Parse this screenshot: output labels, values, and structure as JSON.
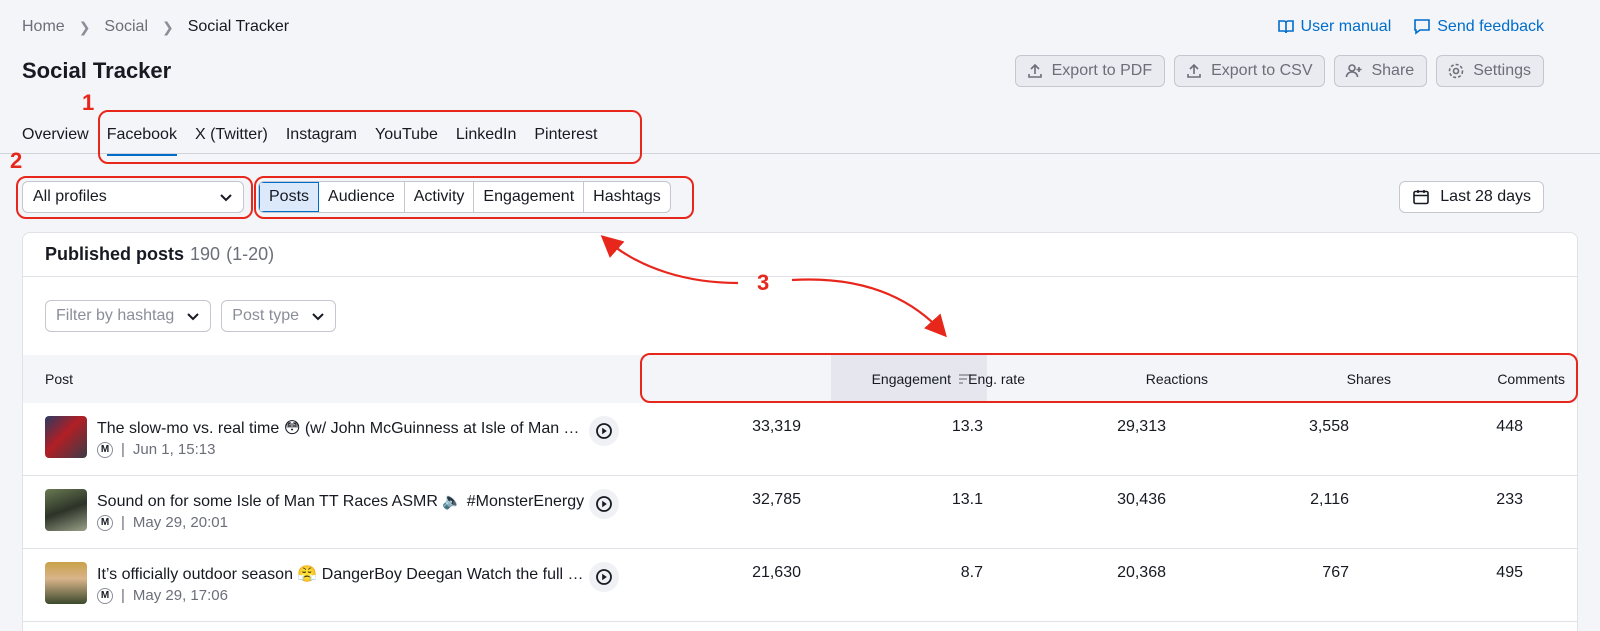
{
  "breadcrumb": {
    "home": "Home",
    "social": "Social",
    "current": "Social Tracker"
  },
  "top_links": {
    "user_manual": "User manual",
    "send_feedback": "Send feedback"
  },
  "page_title": "Social Tracker",
  "toolbar": {
    "export_pdf": "Export to PDF",
    "export_csv": "Export to CSV",
    "share": "Share",
    "settings": "Settings"
  },
  "tabs": [
    {
      "label": "Overview"
    },
    {
      "label": "Facebook"
    },
    {
      "label": "X (Twitter)"
    },
    {
      "label": "Instagram"
    },
    {
      "label": "YouTube"
    },
    {
      "label": "LinkedIn"
    },
    {
      "label": "Pinterest"
    }
  ],
  "active_tab": "Facebook",
  "profile_select": {
    "value": "All profiles"
  },
  "subtabs": [
    {
      "label": "Posts"
    },
    {
      "label": "Audience"
    },
    {
      "label": "Activity"
    },
    {
      "label": "Engagement"
    },
    {
      "label": "Hashtags"
    }
  ],
  "date_range": "Last 28 days",
  "card": {
    "title": "Published posts",
    "count": "190",
    "range": "(1-20)"
  },
  "filters": {
    "hashtag": "Filter by hashtag",
    "post_type": "Post type"
  },
  "columns": {
    "post": "Post",
    "engagement": "Engagement",
    "eng_rate": "Eng. rate",
    "reactions": "Reactions",
    "shares": "Shares",
    "comments": "Comments"
  },
  "rows": [
    {
      "title": "The slow-mo vs. real time 😳 (w/ John McGuinness at Isle of Man TT Races)",
      "badge": "M",
      "date": "Jun 1, 15:13",
      "engagement": "33,319",
      "eng_rate": "13.3",
      "reactions": "29,313",
      "shares": "3,558",
      "comments": "448"
    },
    {
      "title": "Sound on for some Isle of Man TT Races ASMR 🔈 #MonsterEnergy",
      "badge": "M",
      "date": "May 29, 20:01",
      "engagement": "32,785",
      "eng_rate": "13.1",
      "reactions": "30,436",
      "shares": "2,116",
      "comments": "233"
    },
    {
      "title": "It’s officially outdoor season 😤 DangerBoy Deegan Watch the full video",
      "badge": "M",
      "date": "May 29, 17:06",
      "engagement": "21,630",
      "eng_rate": "8.7",
      "reactions": "20,368",
      "shares": "767",
      "comments": "495"
    }
  ],
  "annotations": {
    "one": "1",
    "two": "2",
    "three": "3"
  },
  "colors": {
    "accent": "#006dca",
    "annotation": "#e8271c"
  }
}
